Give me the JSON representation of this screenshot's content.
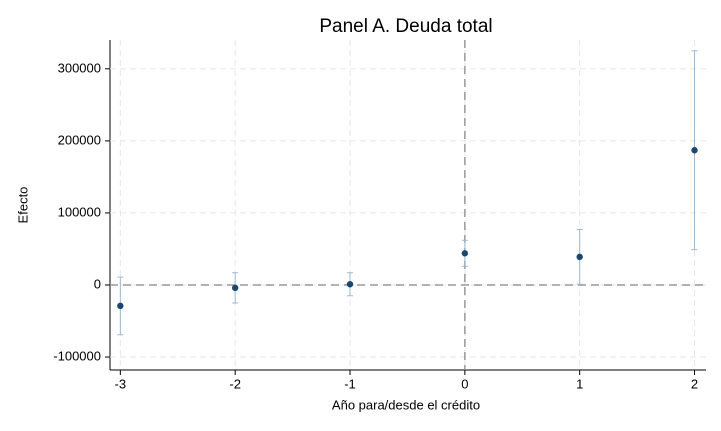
{
  "chart_data": {
    "type": "line",
    "title": "Panel A. Deuda total",
    "x_label": "Año para/desde el crédito",
    "y_label": "Efecto",
    "x": [
      -3,
      -2,
      -1,
      0,
      1,
      2
    ],
    "series": [
      {
        "color": "#1a476f",
        "error_color": "#9fb8d0",
        "values": [
          -29000,
          -4000,
          1000,
          44000,
          39000,
          187000
        ],
        "errors": [
          40000,
          21000,
          16000,
          18000,
          38000,
          138000
        ]
      }
    ],
    "xlim": [
      -3.09,
      2.1
    ],
    "xticks": [
      -3,
      -2,
      -1,
      0,
      1,
      2
    ],
    "ylim": [
      -118000,
      340000
    ],
    "yticks": [
      -100000,
      0,
      100000,
      200000,
      300000
    ],
    "grid": true,
    "reference_lines": {
      "x": 0,
      "y": 0
    }
  }
}
